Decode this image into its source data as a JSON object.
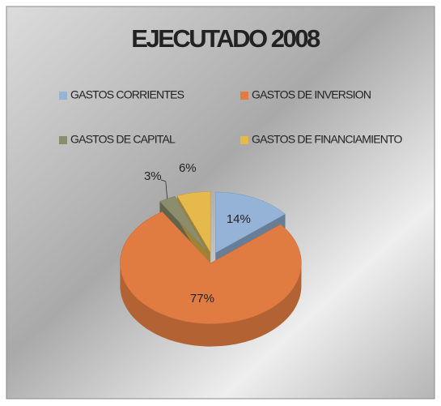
{
  "chart_data": {
    "type": "pie",
    "title": "EJECUTADO 2008",
    "categories": [
      "GASTOS CORRIENTES",
      "GASTOS DE  INVERSION",
      "GASTOS DE CAPITAL",
      "GASTOS DE FINANCIAMIENTO"
    ],
    "values": [
      14,
      77,
      3,
      6
    ],
    "value_labels": [
      "14%",
      "77%",
      "3%",
      "6%"
    ],
    "colors": [
      "#95b3d7",
      "#e07b41",
      "#8c8d6c",
      "#e5b94c"
    ],
    "legend": "top"
  }
}
